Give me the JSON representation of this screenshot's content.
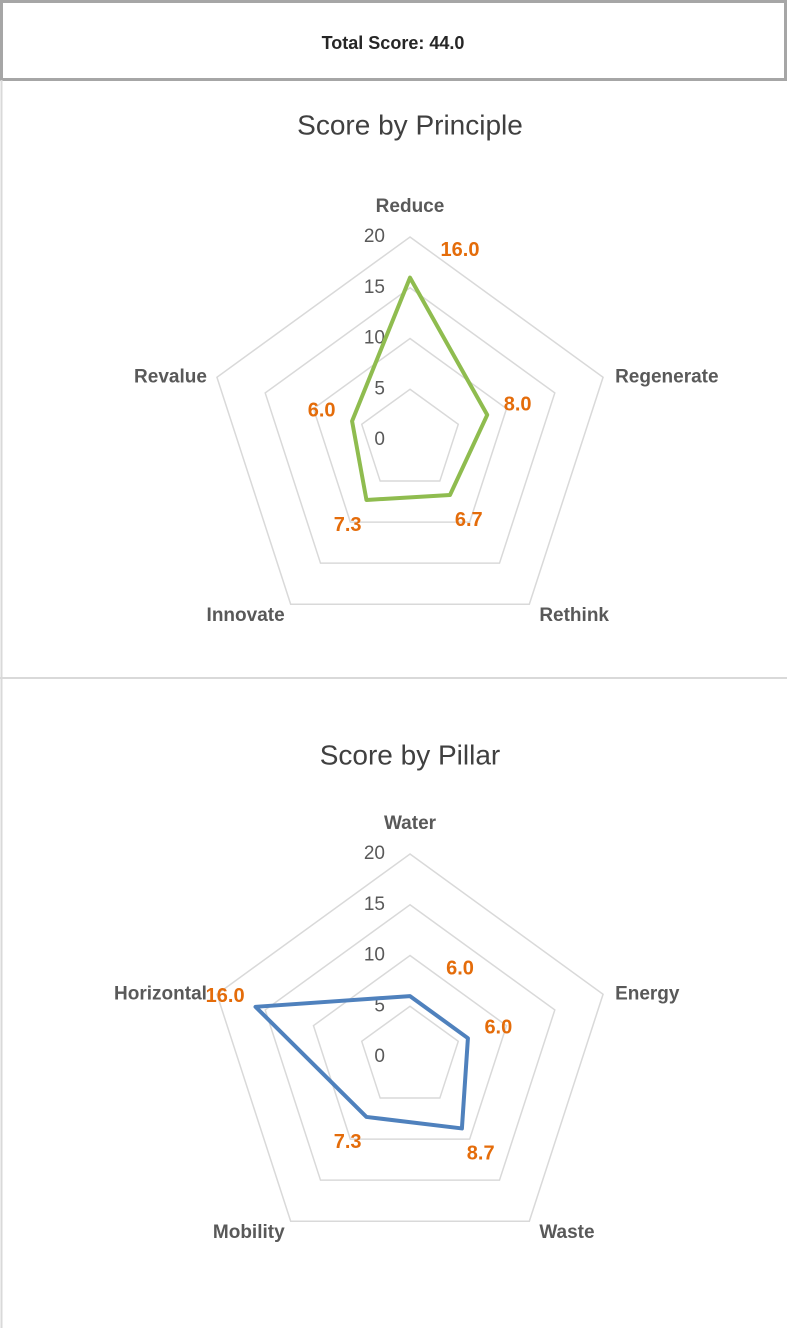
{
  "header": {
    "title": "Total Score: 44.0"
  },
  "chart_data": [
    {
      "type": "radar",
      "title": "Score by Principle",
      "categories": [
        "Reduce",
        "Regenerate",
        "Rethink",
        "Innovate",
        "Revalue"
      ],
      "values": [
        16,
        8,
        6.7,
        7.3,
        6
      ],
      "value_labels": [
        "16.0",
        "8.0",
        "6.7",
        "7.3",
        "6.0"
      ],
      "color": "#8fbc4f",
      "label_color": "#e46c0a",
      "rlim": [
        0,
        20
      ],
      "rticks": [
        0,
        5,
        10,
        15,
        20
      ],
      "grid": true
    },
    {
      "type": "radar",
      "title": "Score by Pillar",
      "categories": [
        "Water",
        "Energy",
        "Waste",
        "Mobility",
        "Horizontal"
      ],
      "values": [
        6,
        6,
        8.7,
        7.3,
        16
      ],
      "value_labels": [
        "6.0",
        "6.0",
        "8.7",
        "7.3",
        "16.0"
      ],
      "color": "#4f81bd",
      "label_color": "#e46c0a",
      "rlim": [
        0,
        20
      ],
      "rticks": [
        0,
        5,
        10,
        15,
        20
      ],
      "grid": true
    }
  ]
}
